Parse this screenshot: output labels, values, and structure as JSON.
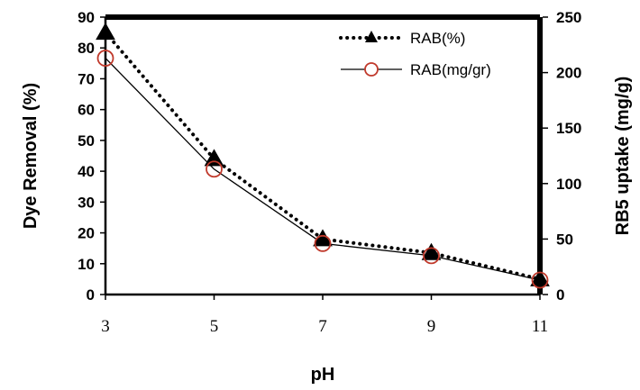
{
  "chart_data": {
    "type": "line",
    "x": [
      3,
      5,
      7,
      9,
      11
    ],
    "xlabel": "pH",
    "ylabel_left": "Dye Removal (%)",
    "ylabel_right": "RB5 uptake (mg/g)",
    "ylim_left": [
      0,
      90
    ],
    "ylim_right": [
      0,
      250
    ],
    "yticks_left": [
      "0",
      "10",
      "20",
      "30",
      "40",
      "50",
      "60",
      "70",
      "80",
      "90"
    ],
    "yticks_right": [
      "0",
      "50",
      "100",
      "150",
      "200",
      "250"
    ],
    "xticks": [
      "3",
      "5",
      "7",
      "9",
      "11"
    ],
    "legend_position": "top-right",
    "series": [
      {
        "name": "RAB(%)",
        "axis": "left",
        "values": [
          85,
          44,
          18,
          13.5,
          5
        ],
        "color": "#000000",
        "line_style": "dotted",
        "marker": "filled-triangle"
      },
      {
        "name": "RAB(mg/gr)",
        "axis": "right",
        "values": [
          213,
          113,
          46,
          35,
          13
        ],
        "color": "#000000",
        "marker_color": "#c0392b",
        "line_style": "solid",
        "marker": "open-circle"
      }
    ]
  }
}
